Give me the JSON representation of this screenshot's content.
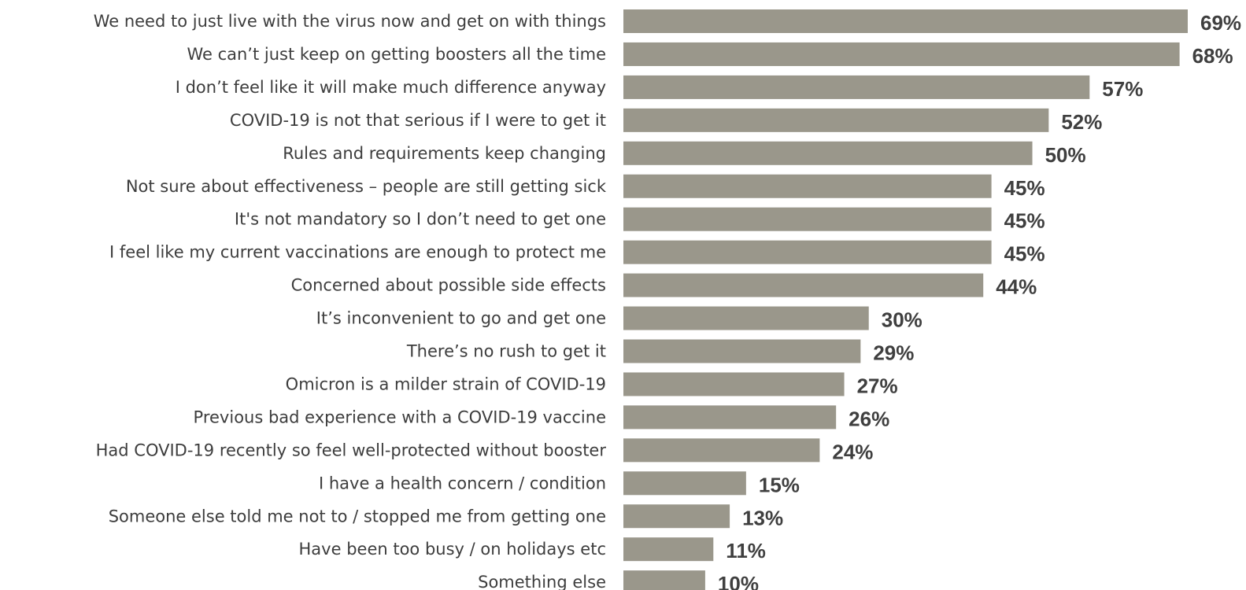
{
  "chart_data": {
    "type": "bar",
    "orientation": "horizontal",
    "title": "",
    "xlabel": "",
    "ylabel": "",
    "xlim": [
      0,
      69
    ],
    "grid": false,
    "legend": "none",
    "bar_color": "#9a978b",
    "label_color": "#3d3d3d",
    "value_suffix": "%",
    "categories": [
      "We need to just live with the virus now and get on with things",
      "We can’t just keep on getting boosters all the time",
      "I don’t feel like it will make much difference anyway",
      "COVID-19 is not that serious if I were to get it",
      "Rules and requirements keep changing",
      "Not sure about effectiveness – people are still getting sick",
      "It's not mandatory so I don’t need to get one",
      "I feel like my current vaccinations are enough to protect me",
      "Concerned about possible side effects",
      "It’s inconvenient to go and get one",
      "There’s no rush to get it",
      "Omicron is a milder strain of COVID-19",
      "Previous bad experience with a COVID-19 vaccine",
      "Had COVID-19 recently so feel well-protected without booster",
      "I have a health concern / condition",
      "Someone else told me not to / stopped me from getting one",
      "Have been too busy / on holidays etc",
      "Something else"
    ],
    "values": [
      69,
      68,
      57,
      52,
      50,
      45,
      45,
      45,
      44,
      30,
      29,
      27,
      26,
      24,
      15,
      13,
      11,
      10
    ]
  }
}
